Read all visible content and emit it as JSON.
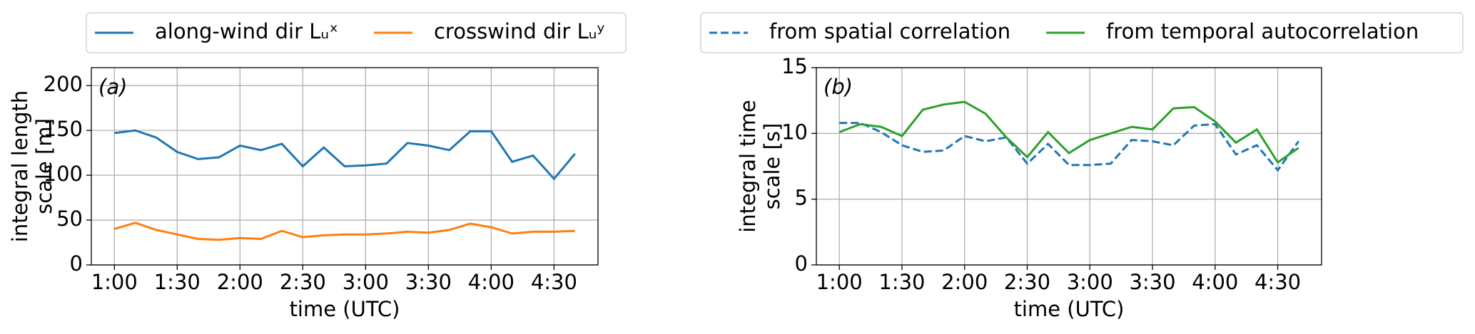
{
  "chart_data": [
    {
      "type": "line",
      "panel_label": "(a)",
      "xlabel": "time (UTC)",
      "ylabel": [
        "integral length",
        "scale [m]"
      ],
      "x": [
        60,
        70,
        80,
        90,
        100,
        110,
        120,
        130,
        140,
        150,
        160,
        170,
        180,
        190,
        200,
        210,
        220,
        230,
        240,
        250,
        260,
        270,
        280
      ],
      "xlim": [
        49,
        291
      ],
      "xticks": [
        {
          "value": 60,
          "label": "1:00"
        },
        {
          "value": 90,
          "label": "1:30"
        },
        {
          "value": 120,
          "label": "2:00"
        },
        {
          "value": 150,
          "label": "2:30"
        },
        {
          "value": 180,
          "label": "3:00"
        },
        {
          "value": 210,
          "label": "3:30"
        },
        {
          "value": 240,
          "label": "4:00"
        },
        {
          "value": 270,
          "label": "4:30"
        }
      ],
      "ylim": [
        0,
        220
      ],
      "yticks": [
        0,
        50,
        100,
        150,
        200
      ],
      "grid": true,
      "series": [
        {
          "name": "along-wind dir Lᵤˣ",
          "color": "#1f77b4",
          "dash": "solid",
          "values": [
            147,
            150,
            142,
            126,
            118,
            120,
            133,
            128,
            135,
            110,
            131,
            110,
            111,
            113,
            136,
            133,
            128,
            149,
            149,
            115,
            122,
            96,
            124
          ]
        },
        {
          "name": "crosswind dir Lᵤʸ",
          "color": "#ff7f0e",
          "dash": "solid",
          "values": [
            40,
            47,
            39,
            34,
            29,
            28,
            30,
            29,
            38,
            31,
            33,
            34,
            34,
            35,
            37,
            36,
            39,
            46,
            42,
            35,
            37,
            37,
            38
          ]
        }
      ]
    },
    {
      "type": "line",
      "panel_label": "(b)",
      "xlabel": "time (UTC)",
      "ylabel": [
        "integral time",
        "scale [s]"
      ],
      "x": [
        60,
        70,
        80,
        90,
        100,
        110,
        120,
        130,
        140,
        150,
        160,
        170,
        180,
        190,
        200,
        210,
        220,
        230,
        240,
        250,
        260,
        270,
        280
      ],
      "xlim": [
        49,
        291
      ],
      "xticks": [
        {
          "value": 60,
          "label": "1:00"
        },
        {
          "value": 90,
          "label": "1:30"
        },
        {
          "value": 120,
          "label": "2:00"
        },
        {
          "value": 150,
          "label": "2:30"
        },
        {
          "value": 180,
          "label": "3:00"
        },
        {
          "value": 210,
          "label": "3:30"
        },
        {
          "value": 240,
          "label": "4:00"
        },
        {
          "value": 270,
          "label": "4:30"
        }
      ],
      "ylim": [
        0,
        15
      ],
      "yticks": [
        0,
        5,
        10,
        15
      ],
      "grid": true,
      "series": [
        {
          "name": "from spatial correlation",
          "color": "#1f77b4",
          "dash": "dashed",
          "values": [
            10.8,
            10.8,
            10.1,
            9.1,
            8.6,
            8.7,
            9.8,
            9.4,
            9.7,
            7.7,
            9.2,
            7.6,
            7.6,
            7.7,
            9.5,
            9.4,
            9.1,
            10.6,
            10.7,
            8.4,
            9.1,
            7.2,
            9.4
          ]
        },
        {
          "name": "from temporal autocorrelation",
          "color": "#2ca02c",
          "dash": "solid",
          "values": [
            10.1,
            10.7,
            10.5,
            9.8,
            11.8,
            12.2,
            12.4,
            11.5,
            9.7,
            8.2,
            10.1,
            8.5,
            9.5,
            10.0,
            10.5,
            10.3,
            11.9,
            12.0,
            10.9,
            9.3,
            10.3,
            7.8,
            8.9
          ]
        }
      ]
    }
  ]
}
